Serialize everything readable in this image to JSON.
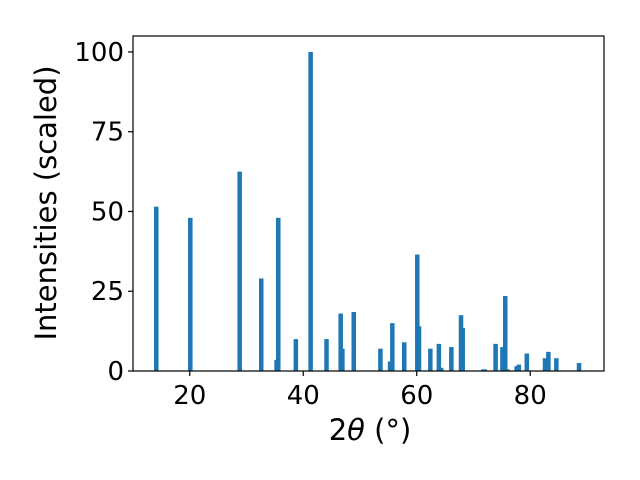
{
  "chart_data": {
    "type": "bar",
    "xlabel_main": "2",
    "xlabel_theta": "θ",
    "xlabel_unit": " (°)",
    "ylabel": "Intensities (scaled)",
    "xlim": [
      10,
      93
    ],
    "ylim": [
      0,
      105
    ],
    "xticks": [
      20,
      40,
      60,
      80
    ],
    "yticks": [
      0,
      25,
      50,
      75,
      100
    ],
    "grid": false,
    "bar_color": "#1f77b4",
    "x": [
      14.1,
      20.1,
      28.8,
      32.6,
      35.3,
      35.6,
      38.7,
      41.3,
      44.1,
      46.6,
      46.9,
      48.9,
      53.6,
      55.3,
      55.7,
      57.8,
      60.1,
      60.4,
      62.4,
      63.9,
      64.3,
      66.1,
      67.8,
      68.1,
      71.7,
      72.0,
      73.9,
      75.1,
      75.6,
      76.0,
      77.6,
      78.0,
      79.4,
      82.6,
      83.2,
      84.6,
      88.6
    ],
    "values": [
      51.5,
      48,
      62.5,
      29,
      3.5,
      48,
      10,
      100,
      10,
      18,
      7,
      18.5,
      7,
      3,
      15,
      9,
      36.5,
      14,
      7,
      8.5,
      1,
      7.5,
      17.5,
      13.5,
      0.5,
      0.5,
      8.5,
      7.5,
      23.5,
      0.5,
      1.5,
      2,
      5.5,
      4,
      6,
      4,
      2.5
    ]
  }
}
